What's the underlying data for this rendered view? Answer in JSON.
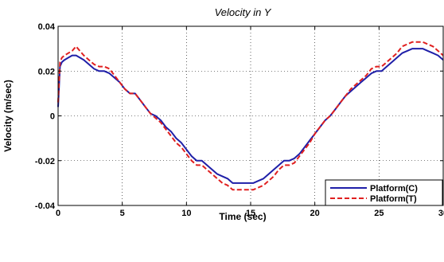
{
  "chart_data": {
    "type": "line",
    "title": "Velocity in Y",
    "xlabel": "Time (sec)",
    "ylabel": "Velocity (m/sec)",
    "xlim": [
      0,
      30
    ],
    "ylim": [
      -0.04,
      0.04
    ],
    "x_ticks": [
      0,
      5,
      10,
      15,
      20,
      25,
      30
    ],
    "x_tick_labels": [
      "0",
      "5",
      "10",
      "15",
      "20",
      "25",
      "30"
    ],
    "y_ticks": [
      -0.04,
      -0.02,
      0,
      0.02,
      0.04
    ],
    "y_tick_labels": [
      "-0.04",
      "-0.02",
      "0",
      "0.02",
      "0.04"
    ],
    "grid": true,
    "legend_position": "bottom-right",
    "series": [
      {
        "name": "Platform(C)",
        "color": "#1f1fa8",
        "style": "solid",
        "x": [
          0,
          0.15,
          0.3,
          0.5,
          0.8,
          1.1,
          1.4,
          1.7,
          2.0,
          2.4,
          2.8,
          3.2,
          3.6,
          4.0,
          4.4,
          4.8,
          5.2,
          5.6,
          6.0,
          6.4,
          6.8,
          7.2,
          7.6,
          8.0,
          8.4,
          8.8,
          9.2,
          9.6,
          10.0,
          10.4,
          10.8,
          11.2,
          11.6,
          12.0,
          12.4,
          12.8,
          13.2,
          13.6,
          14.0,
          14.4,
          14.8,
          15.2,
          15.6,
          16.0,
          16.4,
          16.8,
          17.2,
          17.6,
          18.0,
          18.4,
          18.8,
          19.2,
          19.6,
          20.0,
          20.4,
          20.8,
          21.2,
          21.6,
          22.0,
          22.4,
          22.8,
          23.2,
          23.6,
          24.0,
          24.4,
          24.8,
          25.2,
          25.6,
          26.0,
          26.4,
          26.8,
          27.2,
          27.6,
          28.0,
          28.4,
          28.8,
          29.2,
          29.6,
          30.0
        ],
        "y": [
          0.004,
          0.022,
          0.024,
          0.025,
          0.026,
          0.027,
          0.027,
          0.026,
          0.025,
          0.023,
          0.021,
          0.02,
          0.02,
          0.019,
          0.017,
          0.015,
          0.012,
          0.01,
          0.01,
          0.007,
          0.004,
          0.001,
          0.0,
          -0.002,
          -0.005,
          -0.007,
          -0.01,
          -0.012,
          -0.015,
          -0.018,
          -0.02,
          -0.02,
          -0.022,
          -0.024,
          -0.026,
          -0.027,
          -0.028,
          -0.03,
          -0.03,
          -0.03,
          -0.03,
          -0.03,
          -0.029,
          -0.028,
          -0.026,
          -0.024,
          -0.022,
          -0.02,
          -0.02,
          -0.019,
          -0.017,
          -0.014,
          -0.011,
          -0.008,
          -0.005,
          -0.002,
          0.0,
          0.003,
          0.006,
          0.009,
          0.011,
          0.013,
          0.015,
          0.017,
          0.019,
          0.02,
          0.02,
          0.022,
          0.024,
          0.026,
          0.028,
          0.029,
          0.03,
          0.03,
          0.03,
          0.029,
          0.028,
          0.027,
          0.025
        ]
      },
      {
        "name": "Platform(T)",
        "color": "#e02020",
        "style": "dashed",
        "x": [
          0,
          0.15,
          0.3,
          0.5,
          0.8,
          1.1,
          1.4,
          1.7,
          2.0,
          2.4,
          2.8,
          3.2,
          3.6,
          4.0,
          4.4,
          4.8,
          5.2,
          5.6,
          6.0,
          6.4,
          6.8,
          7.2,
          7.6,
          8.0,
          8.4,
          8.8,
          9.2,
          9.6,
          10.0,
          10.4,
          10.8,
          11.2,
          11.6,
          12.0,
          12.4,
          12.8,
          13.2,
          13.6,
          14.0,
          14.4,
          14.8,
          15.2,
          15.6,
          16.0,
          16.4,
          16.8,
          17.2,
          17.6,
          18.0,
          18.4,
          18.8,
          19.2,
          19.6,
          20.0,
          20.4,
          20.8,
          21.2,
          21.6,
          22.0,
          22.4,
          22.8,
          23.2,
          23.6,
          24.0,
          24.4,
          24.8,
          25.2,
          25.6,
          26.0,
          26.4,
          26.8,
          27.2,
          27.6,
          28.0,
          28.4,
          28.8,
          29.2,
          29.6,
          30.0
        ],
        "y": [
          0.006,
          0.024,
          0.026,
          0.027,
          0.028,
          0.029,
          0.031,
          0.029,
          0.027,
          0.025,
          0.023,
          0.022,
          0.022,
          0.021,
          0.018,
          0.015,
          0.012,
          0.01,
          0.01,
          0.007,
          0.004,
          0.001,
          -0.001,
          -0.003,
          -0.006,
          -0.009,
          -0.012,
          -0.014,
          -0.017,
          -0.02,
          -0.022,
          -0.022,
          -0.024,
          -0.026,
          -0.028,
          -0.03,
          -0.031,
          -0.033,
          -0.033,
          -0.033,
          -0.033,
          -0.033,
          -0.032,
          -0.031,
          -0.029,
          -0.027,
          -0.024,
          -0.022,
          -0.022,
          -0.021,
          -0.018,
          -0.015,
          -0.012,
          -0.008,
          -0.005,
          -0.002,
          0.0,
          0.003,
          0.006,
          0.009,
          0.012,
          0.014,
          0.016,
          0.018,
          0.021,
          0.022,
          0.022,
          0.024,
          0.026,
          0.028,
          0.031,
          0.032,
          0.033,
          0.033,
          0.033,
          0.032,
          0.031,
          0.029,
          0.027
        ]
      }
    ]
  }
}
